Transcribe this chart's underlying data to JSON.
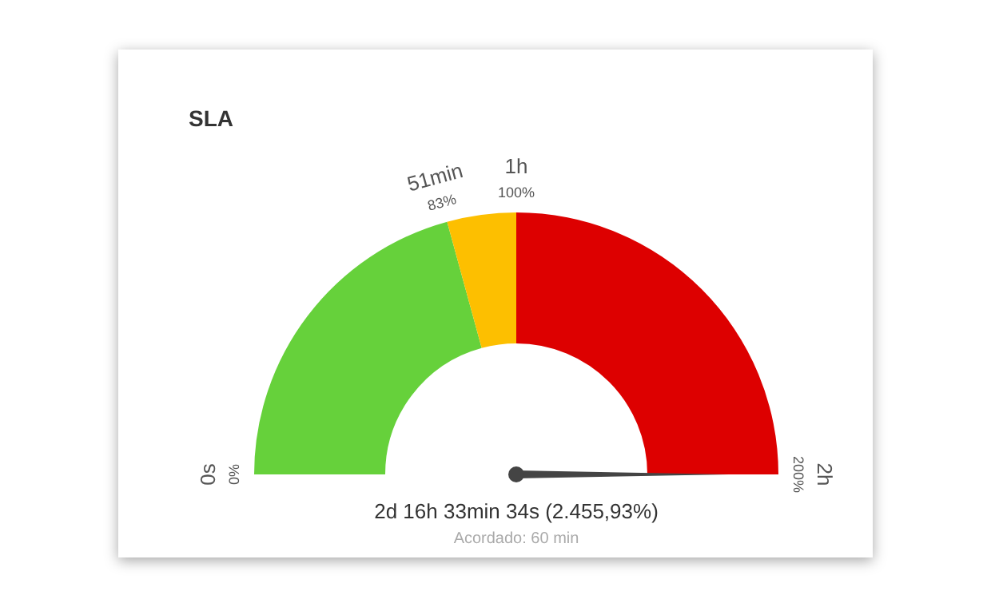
{
  "chart_data": {
    "type": "donut",
    "title": "SLA",
    "categories": [
      "51min",
      "1h",
      "2h"
    ],
    "values": [
      41.5,
      8.5,
      50
    ],
    "colors": [
      "#66d13b",
      "#fdbf00",
      "#dd0000"
    ],
    "needle": "2h",
    "annotations": [
      "0s",
      "0%",
      "83%",
      "100%",
      "200%",
      "2d 16h 33min 34s (2.455,93%)",
      "Acordado: 60 min"
    ]
  }
}
